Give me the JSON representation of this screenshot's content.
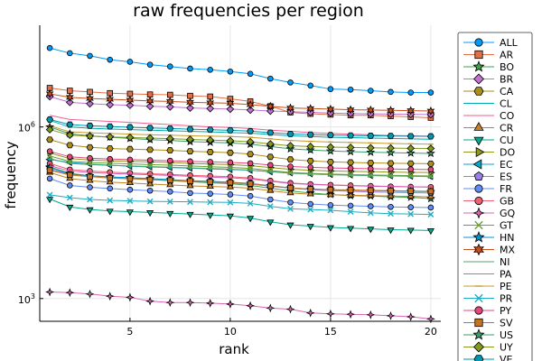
{
  "chart_data": {
    "type": "line",
    "title": "raw frequencies per region",
    "xlabel": "rank",
    "ylabel": "frequency",
    "x": [
      1,
      2,
      3,
      4,
      5,
      6,
      7,
      8,
      9,
      10,
      11,
      12,
      13,
      14,
      15,
      16,
      17,
      18,
      19,
      20
    ],
    "xlim": [
      0.5,
      20.5
    ],
    "xticks": [
      5,
      10,
      15,
      20
    ],
    "yscale": "log",
    "ylim": [
      400,
      60000000
    ],
    "yticks": [
      {
        "value": 1000,
        "base": "10",
        "exp": "3"
      },
      {
        "value": 1000000,
        "base": "10",
        "exp": "6"
      }
    ],
    "grid": true,
    "legend_position": "right",
    "series": [
      {
        "name": "ALL",
        "color": "#009AFA",
        "marker": "circle",
        "values": [
          24000000,
          19500000,
          17500000,
          15000000,
          13800000,
          12300000,
          11400000,
          10500000,
          10000000,
          9300000,
          8500000,
          7000000,
          6000000,
          5300000,
          4600000,
          4500000,
          4300000,
          4100000,
          4000000,
          4000000
        ]
      },
      {
        "name": "AR",
        "color": "#E36F47",
        "marker": "square",
        "values": [
          4800000,
          4300000,
          4100000,
          3900000,
          3800000,
          3700000,
          3650000,
          3500000,
          3400000,
          3100000,
          2800000,
          2300000,
          1800000,
          1700000,
          1650000,
          1600000,
          1600000,
          1550000,
          1500000,
          1450000
        ]
      },
      {
        "name": "BO",
        "color": "#3EA44E",
        "marker": "star5",
        "values": [
          200000,
          155000,
          140000,
          133000,
          128000,
          120000,
          115000,
          110000,
          106000,
          102000,
          95000,
          85000,
          76000,
          70000,
          66000,
          63000,
          62000,
          60000,
          59000,
          56000
        ]
      },
      {
        "name": "BR",
        "color": "#C271D2",
        "marker": "diamond",
        "values": [
          3400000,
          2700000,
          2550000,
          2450000,
          2400000,
          2300000,
          2250000,
          2150000,
          2100000,
          2050000,
          1980000,
          1900000,
          1850000,
          1800000,
          1750000,
          1720000,
          1700000,
          1680000,
          1660000,
          1650000
        ]
      },
      {
        "name": "CA",
        "color": "#AC8D18",
        "marker": "hexagon",
        "values": [
          600000,
          480000,
          440000,
          420000,
          410000,
          400000,
          390000,
          375000,
          365000,
          355000,
          335000,
          300000,
          270000,
          255000,
          245000,
          240000,
          235000,
          232000,
          230000,
          228000
        ]
      },
      {
        "name": "CL",
        "color": "#00A9AD",
        "marker": "none",
        "values": [
          1300000,
          1000000,
          950000,
          920000,
          900000,
          880000,
          860000,
          840000,
          820000,
          800000,
          780000,
          740000,
          700000,
          680000,
          660000,
          650000,
          640000,
          630000,
          620000,
          610000
        ]
      },
      {
        "name": "CO",
        "color": "#ED5E93",
        "marker": "none",
        "values": [
          1600000,
          1350000,
          1300000,
          1250000,
          1200000,
          1150000,
          1100000,
          1050000,
          1000000,
          980000,
          940000,
          880000,
          840000,
          800000,
          770000,
          750000,
          730000,
          710000,
          700000,
          690000
        ]
      },
      {
        "name": "CR",
        "color": "#C68225",
        "marker": "utriangle",
        "values": [
          160000,
          125000,
          115000,
          108000,
          105000,
          100000,
          97000,
          93000,
          91000,
          89000,
          85000,
          77000,
          70000,
          67000,
          65000,
          64000,
          63000,
          62000,
          61000,
          60000
        ]
      },
      {
        "name": "CU",
        "color": "#00A98D",
        "marker": "dtriangle",
        "values": [
          55000,
          40000,
          36000,
          34000,
          33000,
          32000,
          31000,
          30000,
          29000,
          28000,
          25500,
          22000,
          19500,
          18500,
          17500,
          17000,
          16500,
          16000,
          15800,
          15500
        ]
      },
      {
        "name": "DO",
        "color": "#8E971E",
        "marker": "rtriangle",
        "values": [
          350000,
          280000,
          265000,
          255000,
          250000,
          245000,
          240000,
          230000,
          225000,
          220000,
          210000,
          195000,
          182000,
          175000,
          170000,
          167000,
          165000,
          163000,
          161000,
          160000
        ]
      },
      {
        "name": "EC",
        "color": "#00A8CB",
        "marker": "ltriangle",
        "values": [
          270000,
          240000,
          225000,
          215000,
          205000,
          200000,
          195000,
          190000,
          185000,
          180000,
          175000,
          165000,
          158000,
          152000,
          148000,
          145000,
          142000,
          140000,
          138000,
          136000
        ]
      },
      {
        "name": "ES",
        "color": "#9B7FE9",
        "marker": "pentagon",
        "values": [
          180000,
          150000,
          140000,
          133000,
          128000,
          122000,
          118000,
          113000,
          109000,
          105000,
          100000,
          92000,
          85000,
          80000,
          77000,
          75000,
          73000,
          72000,
          71000,
          70000
        ]
      },
      {
        "name": "FR",
        "color": "#608CF6",
        "marker": "circle",
        "values": [
          125000,
          95000,
          88000,
          84000,
          80000,
          77000,
          74000,
          70000,
          68000,
          66000,
          62000,
          54000,
          48000,
          45000,
          43000,
          42000,
          41000,
          40000,
          39500,
          39000
        ]
      },
      {
        "name": "GB",
        "color": "#F05F73",
        "marker": "circle",
        "values": [
          230000,
          180000,
          170000,
          162000,
          157000,
          152000,
          148000,
          143000,
          139000,
          135000,
          128000,
          115000,
          105000,
          100000,
          97000,
          95000,
          93000,
          91000,
          90000,
          89000
        ]
      },
      {
        "name": "GQ",
        "color": "#DD64B5",
        "marker": "star4",
        "values": [
          1300,
          1270,
          1200,
          1100,
          1050,
          900,
          850,
          850,
          830,
          800,
          750,
          680,
          650,
          560,
          540,
          530,
          520,
          500,
          480,
          440
        ]
      },
      {
        "name": "GT",
        "color": "#6C9E33",
        "marker": "xcross",
        "values": [
          310000,
          250000,
          240000,
          232000,
          226000,
          220000,
          215000,
          208000,
          202000,
          196000,
          188000,
          173000,
          160000,
          154000,
          150000,
          147000,
          145000,
          143000,
          141000,
          139000
        ]
      },
      {
        "name": "HN",
        "color": "#0095D1",
        "marker": "star5",
        "values": [
          195000,
          150000,
          140000,
          134000,
          130000,
          125000,
          120000,
          115000,
          112000,
          108000,
          103000,
          94000,
          86000,
          82000,
          80000,
          78000,
          77000,
          76000,
          75000,
          74000
        ]
      },
      {
        "name": "MX",
        "color": "#C84F1C",
        "marker": "star6",
        "values": [
          3800000,
          3300000,
          3150000,
          3050000,
          2950000,
          2850000,
          2800000,
          2700000,
          2650000,
          2600000,
          2450000,
          2300000,
          2150000,
          2100000,
          2050000,
          2000000,
          1980000,
          1950000,
          1930000,
          1900000
        ]
      },
      {
        "name": "NI",
        "color": "#59A46B",
        "marker": "none",
        "values": [
          280000,
          230000,
          220000,
          213000,
          208000,
          203000,
          198000,
          193000,
          188000,
          183000,
          176000,
          165000,
          155000,
          150000,
          146000,
          143000,
          141000,
          139000,
          137000,
          135000
        ]
      },
      {
        "name": "PA",
        "color": "#D45BB9",
        "marker": "none",
        "values": [
          210000,
          170000,
          160000,
          154000,
          150000,
          146000,
          142000,
          137000,
          133000,
          129000,
          123000,
          112000,
          103000,
          99000,
          96000,
          94000,
          92000,
          91000,
          90000,
          89000
        ]
      },
      {
        "name": "PE",
        "color": "#C99A2B",
        "marker": "hline",
        "values": [
          1050000,
          820000,
          790000,
          770000,
          750000,
          730000,
          720000,
          700000,
          690000,
          680000,
          660000,
          620000,
          580000,
          560000,
          545000,
          535000,
          525000,
          515000,
          508000,
          500000
        ]
      },
      {
        "name": "PR",
        "color": "#20ACC2",
        "marker": "xcross",
        "values": [
          65000,
          58000,
          54000,
          52000,
          51000,
          50000,
          49500,
          49000,
          48500,
          48000,
          46000,
          41000,
          37000,
          36000,
          35000,
          33000,
          31500,
          30500,
          30000,
          29500
        ]
      },
      {
        "name": "PY",
        "color": "#E5477D",
        "marker": "circle",
        "values": [
          375000,
          300000,
          285000,
          275000,
          268000,
          262000,
          257000,
          250000,
          245000,
          240000,
          232000,
          216000,
          203000,
          197000,
          192000,
          189000,
          186000,
          184000,
          182000,
          180000
        ]
      },
      {
        "name": "SV",
        "color": "#C5731E",
        "marker": "square",
        "values": [
          175000,
          145000,
          135000,
          128000,
          124000,
          120000,
          117000,
          113000,
          110000,
          107000,
          102000,
          93000,
          86000,
          82000,
          80000,
          79000,
          78000,
          77000,
          76000,
          75000
        ]
      },
      {
        "name": "US",
        "color": "#3A9D6A",
        "marker": "star5",
        "values": [
          1000000,
          760000,
          700000,
          660000,
          630000,
          600000,
          580000,
          555000,
          540000,
          525000,
          500000,
          455000,
          415000,
          395000,
          380000,
          370000,
          362000,
          355000,
          350000,
          345000
        ]
      },
      {
        "name": "UY",
        "color": "#819A1A",
        "marker": "diamond",
        "values": [
          900000,
          720000,
          690000,
          670000,
          655000,
          640000,
          625000,
          605000,
          590000,
          575000,
          550000,
          505000,
          470000,
          455000,
          445000,
          438000,
          432000,
          427000,
          423000,
          420000
        ]
      },
      {
        "name": "VE",
        "color": "#0096AE",
        "marker": "hexagon",
        "values": [
          1350000,
          1100000,
          1050000,
          1020000,
          990000,
          960000,
          940000,
          915000,
          895000,
          875000,
          845000,
          795000,
          755000,
          735000,
          720000,
          710000,
          702000,
          695000,
          690000,
          685000
        ]
      }
    ]
  }
}
